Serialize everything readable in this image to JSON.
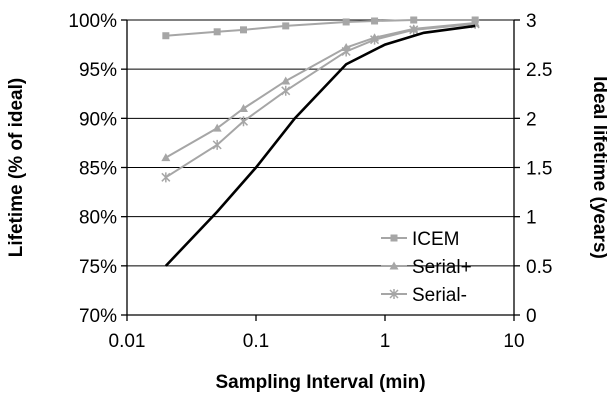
{
  "chart_data": {
    "type": "line",
    "title": "",
    "xlabel": "Sampling Interval (min)",
    "ylabel": "Lifetime (% of ideal)",
    "y2label": "Ideal lifetime (years)",
    "x_scale": "log",
    "xlim": [
      0.01,
      10
    ],
    "ylim": [
      70,
      100
    ],
    "y2lim": [
      0,
      3
    ],
    "grid": "horizontal",
    "legend_position": "bottom-right",
    "x_ticks": [
      "0.01",
      "0.1",
      "1",
      "10"
    ],
    "y_ticks": [
      "70%",
      "75%",
      "80%",
      "85%",
      "90%",
      "95%",
      "100%"
    ],
    "y2_ticks": [
      "0",
      "0.5",
      "1",
      "1.5",
      "2",
      "2.5",
      "3"
    ],
    "series": [
      {
        "name": "ICEM",
        "axis": "left",
        "marker": "square",
        "color": "#a6a6a6",
        "x": [
          0.02,
          0.05,
          0.08,
          0.17,
          0.5,
          0.83,
          1.67,
          5
        ],
        "y": [
          98.4,
          98.8,
          99.0,
          99.4,
          99.8,
          99.9,
          100.0,
          100.0
        ]
      },
      {
        "name": "Serial+",
        "axis": "left",
        "marker": "triangle",
        "color": "#a6a6a6",
        "x": [
          0.02,
          0.05,
          0.08,
          0.17,
          0.5,
          0.83,
          1.67,
          5
        ],
        "y": [
          86.0,
          89.0,
          91.0,
          93.8,
          97.2,
          98.2,
          99.1,
          99.7
        ]
      },
      {
        "name": "Serial-",
        "axis": "left",
        "marker": "star",
        "color": "#a6a6a6",
        "x": [
          0.02,
          0.05,
          0.08,
          0.17,
          0.5,
          0.83,
          1.67,
          5
        ],
        "y": [
          84.0,
          87.3,
          89.7,
          92.8,
          96.8,
          98.0,
          99.0,
          99.6
        ]
      },
      {
        "axis": "right",
        "marker": "none",
        "color": "#000000",
        "x": [
          0.02,
          0.05,
          0.1,
          0.2,
          0.5,
          1,
          2,
          5
        ],
        "y": [
          0.5,
          1.05,
          1.5,
          2.0,
          2.55,
          2.75,
          2.87,
          2.94
        ]
      }
    ]
  }
}
